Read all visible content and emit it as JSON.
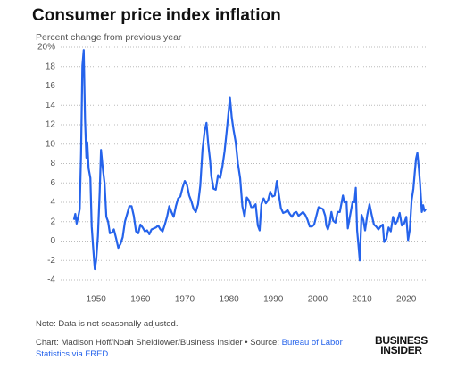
{
  "chart_data": {
    "type": "line",
    "title": "Consumer price index inflation",
    "subtitle": "Percent change from previous year",
    "color": "#2563eb",
    "grid": true,
    "xlim": [
      1942,
      2025
    ],
    "xticks": [
      1950,
      1960,
      1970,
      1980,
      1990,
      2000,
      2010,
      2020
    ],
    "ylim": [
      -4,
      20
    ],
    "yticks": [
      -4,
      -2,
      0,
      2,
      4,
      6,
      8,
      10,
      12,
      14,
      16,
      18,
      {
        "value": 20,
        "label": "20%"
      }
    ],
    "x": [
      1945.0,
      1945.3,
      1945.6,
      1946.0,
      1946.3,
      1946.6,
      1946.9,
      1947.2,
      1947.5,
      1947.8,
      1948.0,
      1948.3,
      1948.7,
      1949.0,
      1949.3,
      1949.7,
      1950.0,
      1950.4,
      1950.8,
      1951.1,
      1951.5,
      1951.9,
      1952.3,
      1952.7,
      1953.1,
      1953.6,
      1954.0,
      1954.5,
      1955.0,
      1955.5,
      1956.0,
      1956.5,
      1957.0,
      1957.5,
      1958.0,
      1958.5,
      1959.0,
      1959.5,
      1960.0,
      1960.5,
      1961.0,
      1961.5,
      1962.0,
      1962.5,
      1963.0,
      1963.5,
      1964.0,
      1964.5,
      1965.0,
      1965.5,
      1966.0,
      1966.5,
      1967.0,
      1967.5,
      1968.0,
      1968.5,
      1969.0,
      1969.5,
      1970.0,
      1970.5,
      1971.0,
      1971.5,
      1972.0,
      1972.5,
      1973.0,
      1973.5,
      1974.0,
      1974.5,
      1974.9,
      1975.3,
      1975.7,
      1976.0,
      1976.5,
      1977.0,
      1977.5,
      1978.0,
      1978.5,
      1979.0,
      1979.5,
      1980.2,
      1980.6,
      1981.0,
      1981.5,
      1982.0,
      1982.5,
      1983.0,
      1983.5,
      1984.0,
      1984.5,
      1985.0,
      1985.5,
      1986.0,
      1986.5,
      1986.9,
      1987.3,
      1987.8,
      1988.3,
      1988.8,
      1989.3,
      1989.8,
      1990.3,
      1990.8,
      1991.2,
      1991.7,
      1992.2,
      1992.7,
      1993.2,
      1993.7,
      1994.2,
      1994.7,
      1995.2,
      1995.7,
      1996.2,
      1996.7,
      1997.2,
      1997.7,
      1998.2,
      1998.7,
      1999.2,
      1999.7,
      2000.2,
      2000.7,
      2001.2,
      2001.7,
      2001.95,
      2002.3,
      2002.7,
      2003.1,
      2003.5,
      2004.0,
      2004.5,
      2005.0,
      2005.7,
      2006.0,
      2006.5,
      2006.8,
      2007.3,
      2007.9,
      2008.3,
      2008.6,
      2008.9,
      2009.2,
      2009.5,
      2009.9,
      2010.3,
      2010.7,
      2011.2,
      2011.7,
      2012.2,
      2012.7,
      2013.2,
      2013.7,
      2014.2,
      2014.7,
      2015.0,
      2015.5,
      2016.0,
      2016.5,
      2017.0,
      2017.5,
      2018.0,
      2018.5,
      2019.0,
      2019.5,
      2020.0,
      2020.4,
      2020.8,
      2021.2,
      2021.6,
      2021.9,
      2022.2,
      2022.5,
      2022.8,
      2023.1,
      2023.5,
      2023.8,
      2024.1,
      2024.4
    ],
    "values": [
      2.2,
      2.8,
      1.8,
      2.6,
      3.3,
      9,
      18.1,
      19.7,
      12.5,
      8.6,
      10.2,
      7.5,
      6.5,
      1.5,
      -0.5,
      -2.9,
      -2.0,
      0.5,
      5.0,
      9.4,
      7.5,
      6.0,
      2.5,
      2.0,
      0.8,
      0.9,
      1.2,
      0.3,
      -0.7,
      -0.3,
      0.4,
      2.0,
      2.8,
      3.6,
      3.6,
      2.6,
      1.0,
      0.8,
      1.7,
      1.4,
      1.0,
      1.1,
      0.7,
      1.2,
      1.3,
      1.4,
      1.6,
      1.2,
      1.0,
      1.7,
      2.5,
      3.6,
      3.0,
      2.5,
      3.6,
      4.4,
      4.6,
      5.5,
      6.2,
      5.8,
      4.7,
      4.1,
      3.3,
      3.0,
      3.8,
      5.7,
      9.4,
      11.4,
      12.2,
      10.0,
      8.4,
      6.7,
      5.4,
      5.3,
      6.8,
      6.5,
      7.7,
      9.3,
      11.5,
      14.8,
      12.8,
      11.5,
      10.2,
      8.0,
      6.5,
      3.6,
      2.5,
      4.5,
      4.2,
      3.5,
      3.5,
      3.8,
      1.6,
      1.1,
      3.8,
      4.4,
      3.9,
      4.2,
      5.1,
      4.6,
      4.7,
      6.2,
      4.9,
      3.4,
      2.9,
      3.0,
      3.2,
      2.8,
      2.5,
      2.9,
      3.0,
      2.6,
      2.8,
      3.0,
      2.7,
      2.2,
      1.5,
      1.5,
      1.7,
      2.6,
      3.5,
      3.4,
      3.3,
      2.6,
      1.6,
      1.2,
      1.8,
      3.0,
      2.1,
      1.9,
      3.0,
      3.0,
      4.7,
      4.0,
      4.1,
      1.3,
      2.6,
      4.1,
      4.0,
      5.5,
      1.1,
      -0.4,
      -2.0,
      2.7,
      2.2,
      1.1,
      2.7,
      3.8,
      2.7,
      1.7,
      1.5,
      1.2,
      1.5,
      1.7,
      -0.1,
      0.2,
      1.4,
      1.0,
      2.5,
      1.7,
      2.1,
      2.9,
      1.6,
      1.8,
      2.5,
      0.1,
      1.2,
      4.2,
      5.4,
      7.0,
      8.5,
      9.1,
      7.7,
      6.0,
      3.0,
      3.7,
      3.1,
      3.3
    ]
  },
  "footer": {
    "note": "Note: Data is not seasonally adjusted.",
    "credit": "Chart: Madison Hoff/Noah Sheidlower/Business Insider • Source: ",
    "source": "Bureau of Labor Statistics via FRED",
    "logo_top": "BUSINESS",
    "logo_bottom": "INSIDER"
  }
}
